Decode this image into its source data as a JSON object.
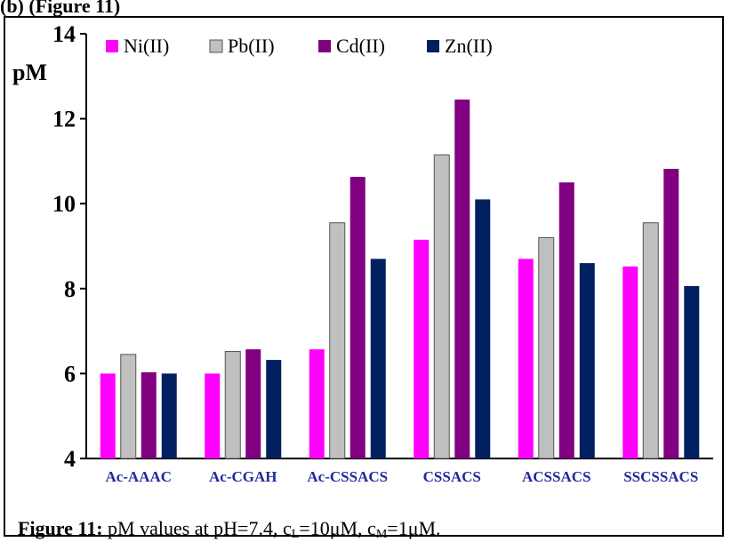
{
  "header_fragment": "(b) (Figure 11)",
  "caption": {
    "label": "Figure 11:",
    "text_before": " pM values at pH=7.4, c",
    "sub_l": "L",
    "text_mid": "=10μM, c",
    "sub_m": "M",
    "text_after": "=1μM."
  },
  "chart_data": {
    "type": "bar",
    "ylabel": "pM",
    "ylim": [
      4,
      14
    ],
    "yticks": [
      4,
      6,
      8,
      10,
      12,
      14
    ],
    "grid": false,
    "legend_position": "top",
    "categories": [
      "Ac-AAAC",
      "Ac-CGAH",
      "Ac-CSSACS",
      "CSSACS",
      "ACSSACS",
      "SSCSSACS"
    ],
    "series": [
      {
        "name": "Ni(II)",
        "color": "#ff00ff",
        "values": [
          6.0,
          6.0,
          6.57,
          9.15,
          8.7,
          8.52
        ]
      },
      {
        "name": "Pb(II)",
        "color": "#c0c0c0",
        "values": [
          6.45,
          6.52,
          9.55,
          11.15,
          9.2,
          9.55
        ]
      },
      {
        "name": "Cd(II)",
        "color": "#800080",
        "values": [
          6.03,
          6.57,
          10.63,
          12.45,
          10.5,
          10.82
        ]
      },
      {
        "name": "Zn(II)",
        "color": "#002060",
        "values": [
          6.0,
          6.32,
          8.7,
          10.1,
          8.6,
          8.06
        ]
      }
    ],
    "category_label_color": "#1f2a9c"
  }
}
